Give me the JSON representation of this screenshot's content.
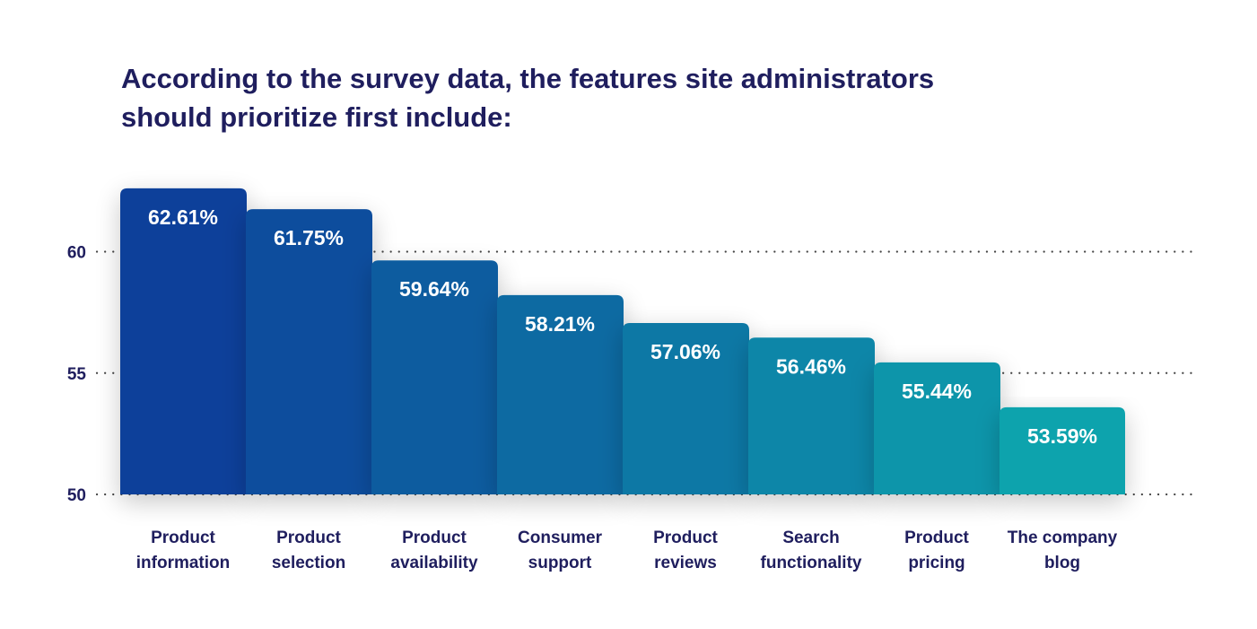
{
  "chart_data": {
    "type": "bar",
    "title_lines": [
      "According to the survey data, the features site administrators",
      "should prioritize first include:"
    ],
    "categories": [
      [
        "Product",
        "information"
      ],
      [
        "Product",
        "selection"
      ],
      [
        "Product",
        "availability"
      ],
      [
        "Consumer",
        "support"
      ],
      [
        "Product",
        "reviews"
      ],
      [
        "Search",
        "functionality"
      ],
      [
        "Product",
        "pricing"
      ],
      [
        "The company",
        "blog"
      ]
    ],
    "values": [
      62.61,
      61.75,
      59.64,
      58.21,
      57.06,
      56.46,
      55.44,
      53.59
    ],
    "value_labels": [
      "62.61%",
      "61.75%",
      "59.64%",
      "58.21%",
      "57.06%",
      "56.46%",
      "55.44%",
      "53.59%"
    ],
    "yticks": [
      50,
      55,
      60
    ],
    "ylim": [
      50,
      65
    ],
    "grid": "dotted horizontal lines at y ticks",
    "xlabel": "",
    "ylabel": "",
    "colors": {
      "bar_start": "#0b3f9a",
      "bar_end": "#0aa3ad",
      "text": "#1f1e5e",
      "value_text": "#ffffff",
      "grid": "#444444"
    }
  }
}
